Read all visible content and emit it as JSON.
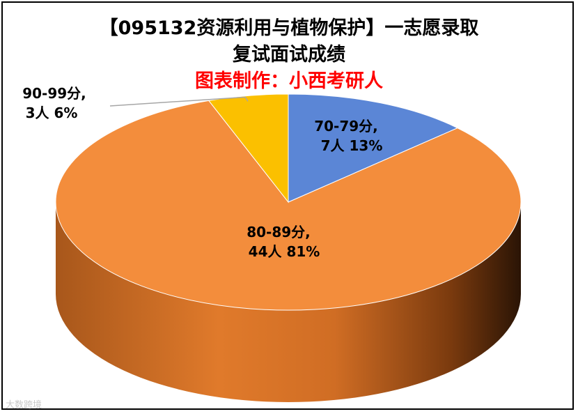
{
  "chart_data": {
    "type": "pie",
    "title_line1": "【095132资源利用与植物保护】一志愿录取",
    "title_line2": "复试面试成绩",
    "subtitle": "图表制作：小西考研人",
    "slices": [
      {
        "label": "70-79分,",
        "count_label": "7人 13%",
        "count": 7,
        "percent": 13,
        "color": "#5b86d6"
      },
      {
        "label": "80-89分,",
        "count_label": "44人 81%",
        "count": 44,
        "percent": 81,
        "color": "#f38d3c"
      },
      {
        "label": "90-99分,",
        "count_label": "3人 6%",
        "count": 3,
        "percent": 6,
        "color": "#fbc000"
      }
    ]
  },
  "watermark": "大数跨境",
  "colors": {
    "subtitle": "#ff0000"
  }
}
